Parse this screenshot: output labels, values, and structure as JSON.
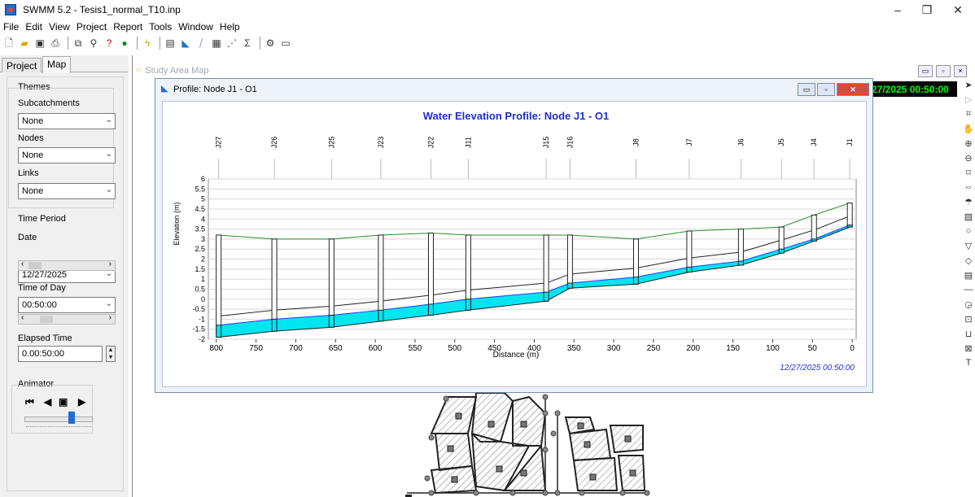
{
  "window": {
    "title": "SWMM 5.2 - Tesis1_normal_T10.inp"
  },
  "menu": [
    "File",
    "Edit",
    "View",
    "Project",
    "Report",
    "Tools",
    "Window",
    "Help"
  ],
  "toolbar": [
    "new-icon",
    "open-icon",
    "save-icon",
    "print-icon",
    "copy-icon",
    "find-icon",
    "query-icon",
    "globe-icon",
    "run-icon",
    "report-icon",
    "profile-icon",
    "graph-icon",
    "table-icon",
    "scatter-icon",
    "sum-icon",
    "options-icon",
    "arrange-icon"
  ],
  "left_panel": {
    "tabs": [
      "Project",
      "Map"
    ],
    "active_tab": "Map",
    "themes_label": "Themes",
    "subcatchments_label": "Subcatchments",
    "subcatchments_value": "None",
    "nodes_label": "Nodes",
    "nodes_value": "None",
    "links_label": "Links",
    "links_value": "None",
    "time_period_label": "Time Period",
    "date_label": "Date",
    "date_value": "12/27/2025",
    "time_of_day_label": "Time of Day",
    "time_of_day_value": "00:50:00",
    "elapsed_time_label": "Elapsed Time",
    "elapsed_time_value": "0.00:50:00",
    "animator_label": "Animator",
    "animator_slider": 0.65
  },
  "map_window": {
    "title": "Study Area Map",
    "clock": "27/2025 00:50:00"
  },
  "profile_window": {
    "title": "Profile: Node J1 - O1",
    "timestamp": "12/27/2025 00:50:00"
  },
  "chart_data": {
    "type": "line",
    "title": "Water Elevation Profile: Node J1 - O1",
    "xlabel": "Distance (m)",
    "ylabel": "Elevation (m)",
    "xlim": [
      810,
      -5
    ],
    "ylim": [
      -2,
      6
    ],
    "x_ticks": [
      800,
      750,
      700,
      650,
      600,
      550,
      500,
      450,
      400,
      350,
      300,
      250,
      200,
      150,
      100,
      50,
      0
    ],
    "y_ticks": [
      -2,
      -1.5,
      -1,
      -0.5,
      0,
      0.5,
      1,
      1.5,
      2,
      2.5,
      3,
      3.5,
      4,
      4.5,
      5,
      5.5,
      6
    ],
    "y_tick_labels": [
      "-2",
      "-1.5",
      "-1",
      "-0.5",
      "0",
      "0.5",
      "1",
      "1.5",
      "2",
      "2.5",
      "3",
      "3.5",
      "4",
      "4.5",
      "5",
      "5.5",
      "6"
    ],
    "nodes": [
      {
        "name": "J27",
        "x": 797,
        "invert": -1.9,
        "water": -1.3,
        "top": 3.2
      },
      {
        "name": "J26",
        "x": 727,
        "invert": -1.6,
        "water": -1.0,
        "top": 3.0
      },
      {
        "name": "J25",
        "x": 655,
        "invert": -1.4,
        "water": -0.8,
        "top": 3.0
      },
      {
        "name": "J23",
        "x": 593,
        "invert": -1.1,
        "water": -0.55,
        "top": 3.2
      },
      {
        "name": "J22",
        "x": 530,
        "invert": -0.8,
        "water": -0.25,
        "top": 3.3
      },
      {
        "name": "J11",
        "x": 483,
        "invert": -0.55,
        "water": 0.0,
        "top": 3.2
      },
      {
        "name": "J15",
        "x": 385,
        "invert": -0.1,
        "water": 0.35,
        "top": 3.2
      },
      {
        "name": "J16",
        "x": 355,
        "invert": 0.55,
        "water": 0.8,
        "top": 3.2
      },
      {
        "name": "J8",
        "x": 272,
        "invert": 0.75,
        "water": 1.1,
        "top": 3.0
      },
      {
        "name": "J7",
        "x": 205,
        "invert": 1.35,
        "water": 1.6,
        "top": 3.4
      },
      {
        "name": "J6",
        "x": 140,
        "invert": 1.7,
        "water": 1.9,
        "top": 3.5
      },
      {
        "name": "J5",
        "x": 89,
        "invert": 2.3,
        "water": 2.5,
        "top": 3.6
      },
      {
        "name": "J4",
        "x": 48,
        "invert": 2.9,
        "water": 3.0,
        "top": 4.2
      },
      {
        "name": "J1",
        "x": 3,
        "invert": 3.6,
        "water": 3.7,
        "top": 4.8
      }
    ],
    "colors": {
      "water": "#00e5f0",
      "ground": "#2a8a2a",
      "crown": "#222222",
      "hgl": "#1e3cff"
    }
  }
}
